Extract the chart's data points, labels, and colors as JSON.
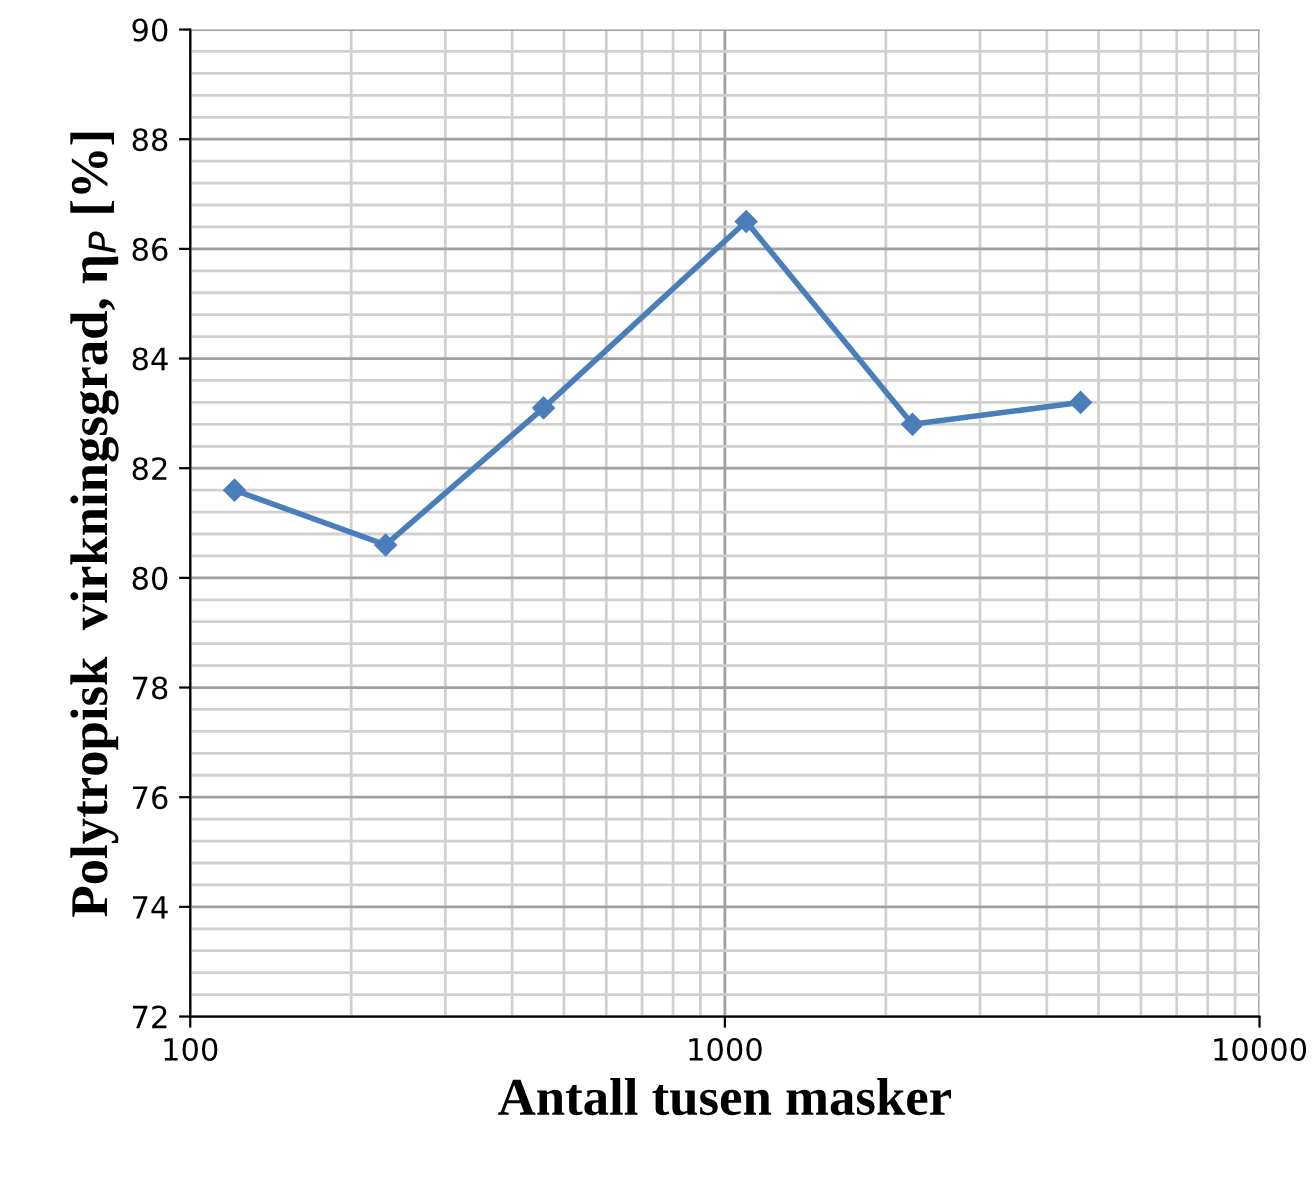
{
  "chart_data": {
    "type": "line",
    "xlabel": "Antall tusen masker",
    "ylabel": "Polytropisk  virkningsgrad, η$_{P}$ [%]",
    "x": [
      121,
      232,
      458,
      1096,
      2243,
      4627
    ],
    "series": [
      {
        "color": "#4a7ebb",
        "values": [
          81.6,
          80.6,
          83.1,
          86.5,
          82.8,
          83.2
        ]
      }
    ],
    "log": "x",
    "xlim": [
      100,
      10000
    ],
    "xticks": [
      100,
      1000,
      10000
    ],
    "ylim": [
      72,
      90
    ],
    "yticks": [
      72,
      74,
      76,
      78,
      80,
      82,
      84,
      86,
      88,
      90
    ],
    "grid": true,
    "marker": "diamond",
    "line_style": "solid"
  }
}
